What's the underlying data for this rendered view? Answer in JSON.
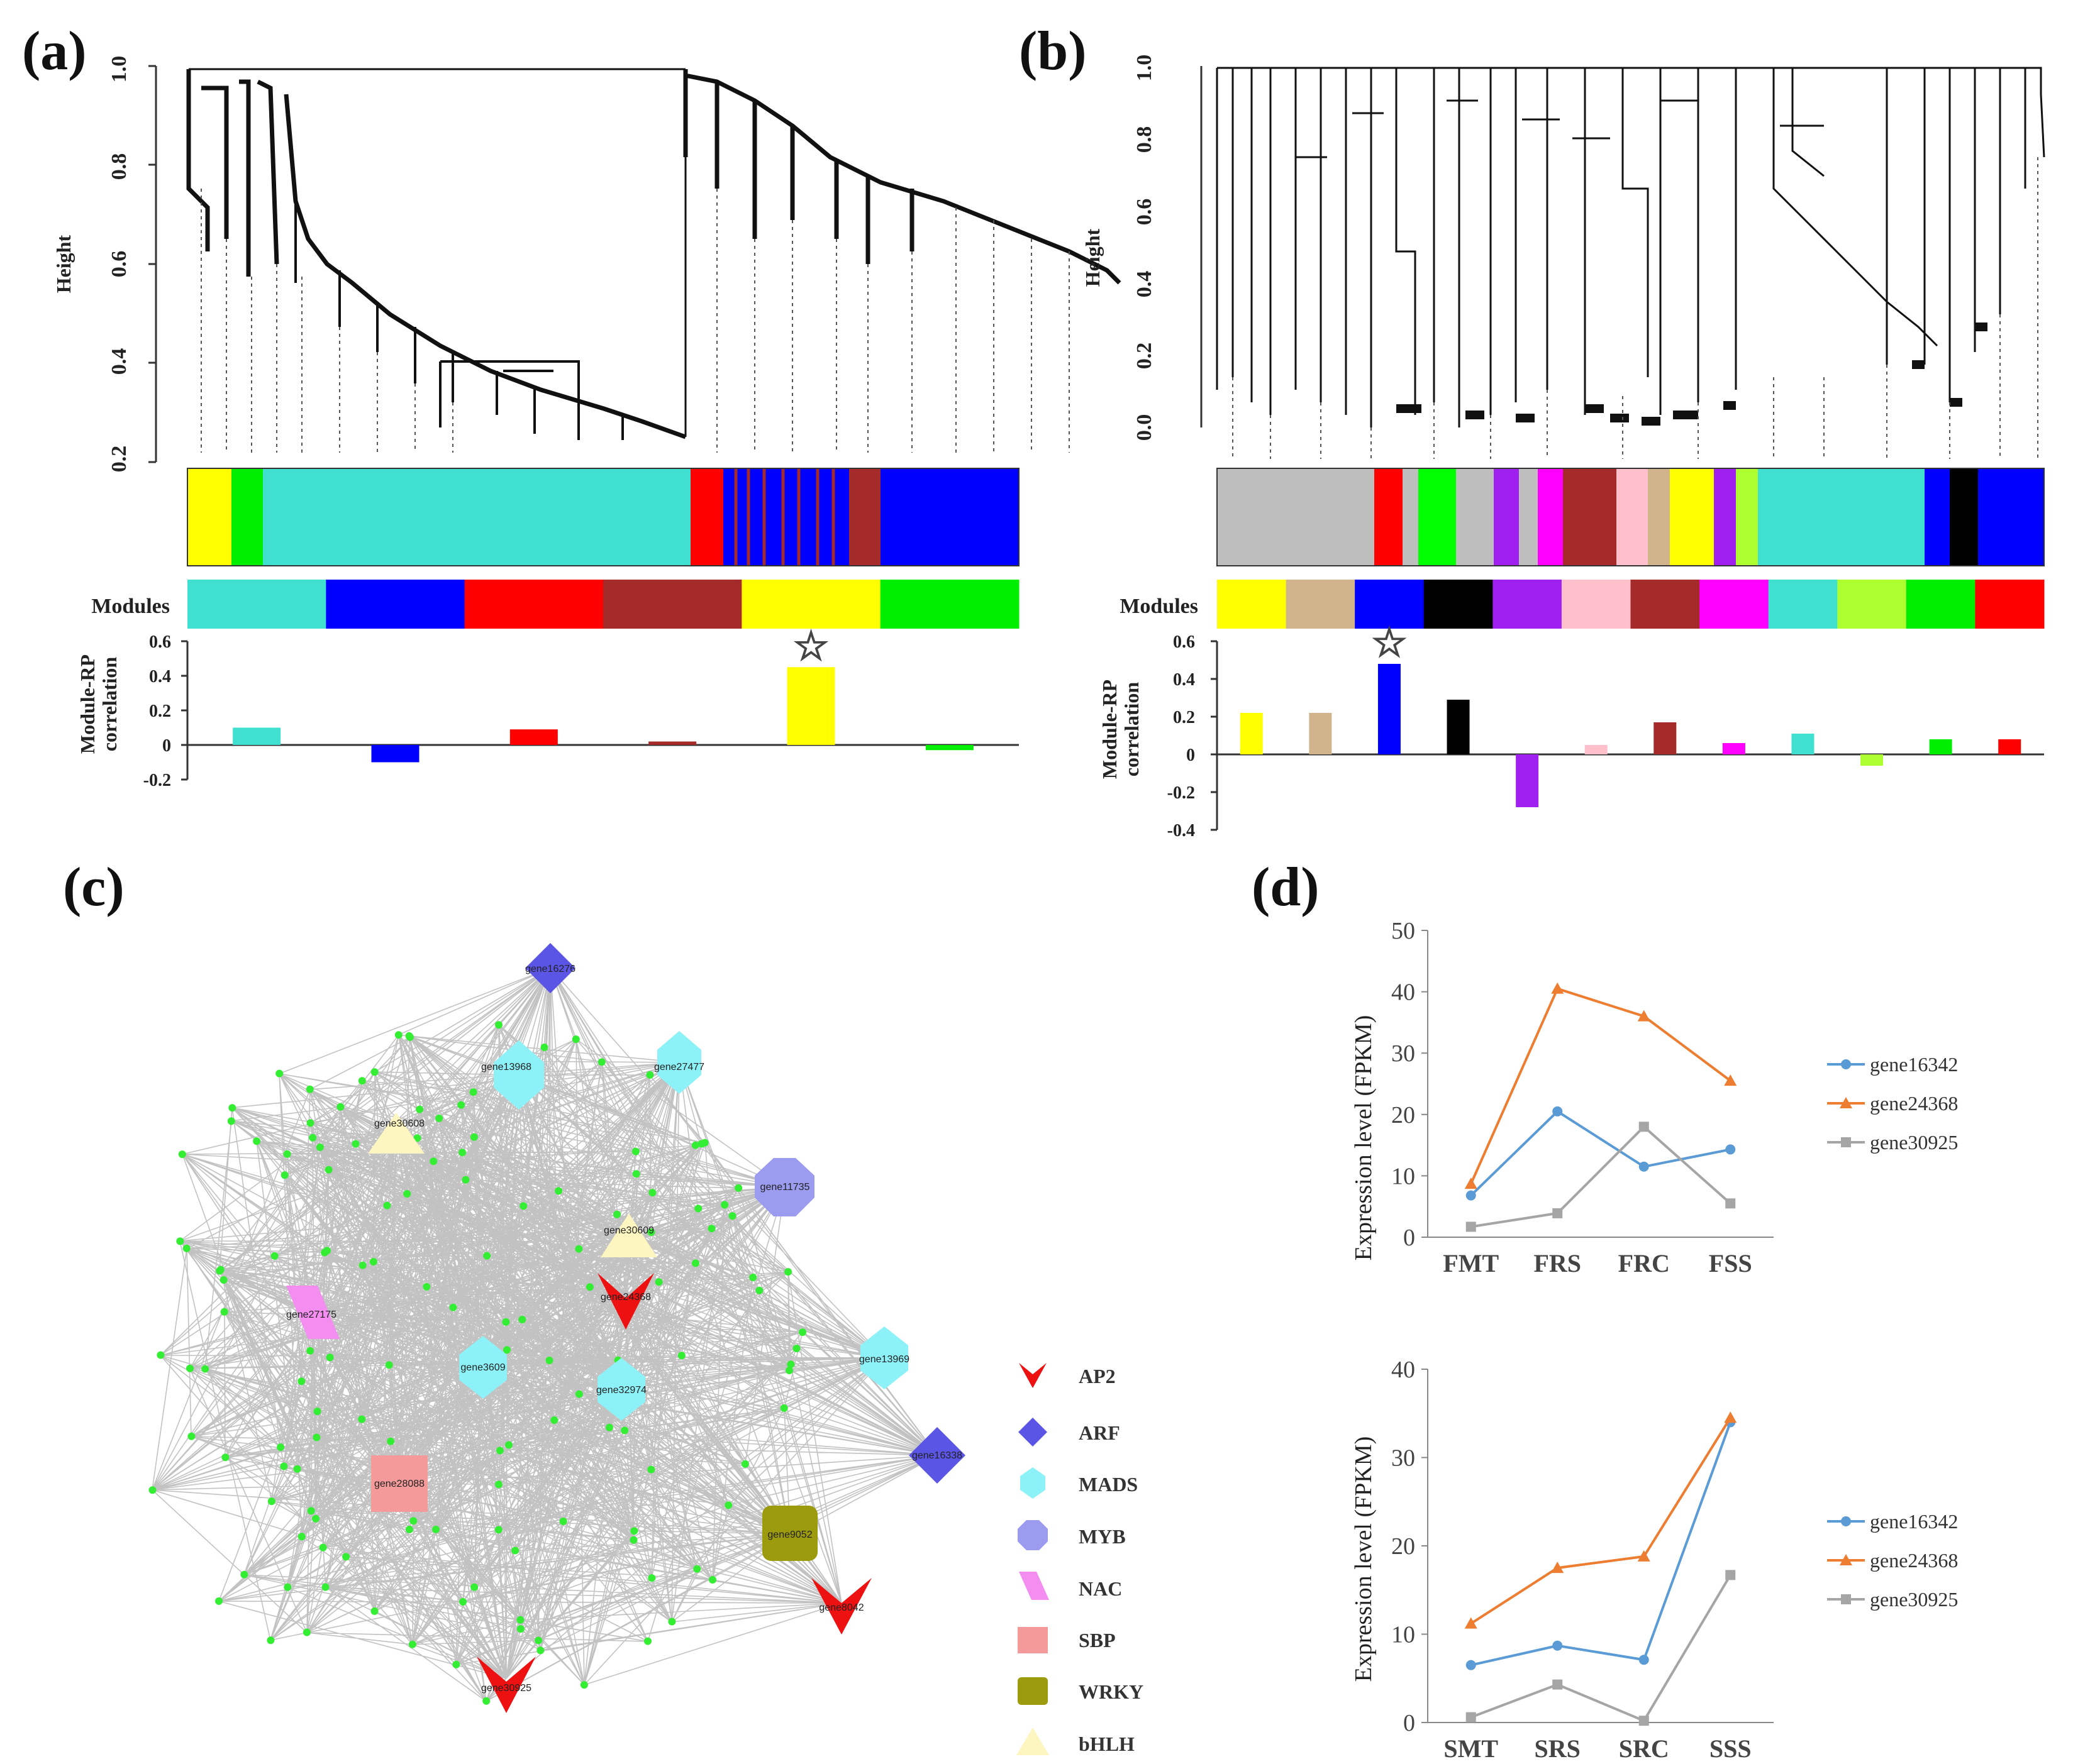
{
  "panel_labels": {
    "a": "(a)",
    "b": "(b)",
    "c": "(c)",
    "d": "(d)"
  },
  "dendro_a": {
    "ylabel": "Height",
    "yticks": [
      "0.2",
      "0.4",
      "0.6",
      "0.8",
      "1.0"
    ],
    "ylim": [
      0.2,
      1.0
    ],
    "color_bar": [
      "#ffff00",
      "#00ee00",
      "#40e0d0",
      "#ff0000",
      "#0000ff",
      "#a52a2a",
      "#0000ff"
    ]
  },
  "dendro_b": {
    "ylabel": "Height",
    "yticks": [
      "0.0",
      "0.2",
      "0.4",
      "0.6",
      "0.8",
      "1.0"
    ],
    "ylim": [
      0.0,
      1.0
    ],
    "color_bar": [
      "#bebebe",
      "#ff0000",
      "#00ff00",
      "#bebebe",
      "#a020f0",
      "#ff00ff",
      "#a52a2a",
      "#ffc0cb",
      "#d2b48c",
      "#ffff00",
      "#a020f0",
      "#adff2f",
      "#40e0d0",
      "#0000ff",
      "#000000",
      "#0000ff"
    ]
  },
  "modules_label": "Modules",
  "rp_ylabel_1": "Module-RP",
  "rp_ylabel_2": "correlation",
  "star": "☆",
  "chart_data": [
    {
      "type": "bar",
      "panel": "(a)",
      "title": "",
      "xlabel": "Modules",
      "ylabel": "Module-RP correlation",
      "categories": [
        "turquoise",
        "blue",
        "red",
        "brown",
        "yellow",
        "green"
      ],
      "colors": [
        "#40e0d0",
        "#0000ff",
        "#ff0000",
        "#a52a2a",
        "#ffff00",
        "#00ee00"
      ],
      "values": [
        0.1,
        -0.1,
        0.09,
        0.02,
        0.45,
        -0.03
      ],
      "yticks": [
        "-0.2",
        "0",
        "0.2",
        "0.4",
        "0.6"
      ],
      "ylim": [
        -0.2,
        0.6
      ],
      "highlight_index": 4
    },
    {
      "type": "bar",
      "panel": "(b)",
      "title": "",
      "xlabel": "Modules",
      "ylabel": "Module-RP correlation",
      "categories": [
        "yellow",
        "tan",
        "blue",
        "black",
        "purple",
        "pink",
        "brown",
        "magenta",
        "turquoise",
        "greenyellow",
        "green",
        "red"
      ],
      "colors": [
        "#ffff00",
        "#d2b48c",
        "#0000ff",
        "#000000",
        "#a020f0",
        "#ffc0cb",
        "#a52a2a",
        "#ff00ff",
        "#40e0d0",
        "#adff2f",
        "#00ee00",
        "#ff0000"
      ],
      "values": [
        0.22,
        0.22,
        0.48,
        0.29,
        -0.28,
        0.05,
        0.17,
        0.06,
        0.11,
        -0.06,
        0.08,
        0.08
      ],
      "yticks": [
        "-0.4",
        "-0.2",
        "0",
        "0.2",
        "0.4",
        "0.6"
      ],
      "ylim": [
        -0.4,
        0.6
      ],
      "highlight_index": 2
    },
    {
      "type": "line",
      "panel": "(d) top",
      "title": "",
      "xlabel": "",
      "ylabel": "Expression level (FPKM)",
      "categories": [
        "FMT",
        "FRS",
        "FRC",
        "FSS"
      ],
      "ylim": [
        0,
        50
      ],
      "yticks": [
        "0",
        "10",
        "20",
        "30",
        "40",
        "50"
      ],
      "series": [
        {
          "name": "gene16342",
          "color": "#5b9bd5",
          "marker": "circle",
          "values": [
            6.8,
            20.5,
            11.5,
            14.3
          ]
        },
        {
          "name": "gene24368",
          "color": "#ed7d31",
          "marker": "triangle",
          "values": [
            8.7,
            40.5,
            36.0,
            25.5
          ]
        },
        {
          "name": "gene30925",
          "color": "#a5a5a5",
          "marker": "square",
          "values": [
            1.7,
            3.9,
            18.0,
            5.5
          ]
        }
      ]
    },
    {
      "type": "line",
      "panel": "(d) bottom",
      "title": "",
      "xlabel": "",
      "ylabel": "Expression level (FPKM)",
      "categories": [
        "SMT",
        "SRS",
        "SRC",
        "SSS"
      ],
      "ylim": [
        0,
        40
      ],
      "yticks": [
        "0",
        "10",
        "20",
        "30",
        "40"
      ],
      "series": [
        {
          "name": "gene16342",
          "color": "#5b9bd5",
          "marker": "circle",
          "values": [
            6.5,
            8.7,
            7.1,
            34.0
          ]
        },
        {
          "name": "gene24368",
          "color": "#ed7d31",
          "marker": "triangle",
          "values": [
            11.2,
            17.5,
            18.8,
            34.5
          ]
        },
        {
          "name": "gene30925",
          "color": "#a5a5a5",
          "marker": "square",
          "values": [
            0.6,
            4.3,
            0.2,
            16.7
          ]
        }
      ]
    }
  ],
  "network": {
    "hubs": [
      {
        "label": "gene16276",
        "family": "ARF"
      },
      {
        "label": "gene13968",
        "family": "MADS"
      },
      {
        "label": "gene27477",
        "family": "MADS"
      },
      {
        "label": "gene30608",
        "family": "bHLH"
      },
      {
        "label": "gene11735",
        "family": "MYB"
      },
      {
        "label": "gene30609",
        "family": "bHLH"
      },
      {
        "label": "gene27175",
        "family": "NAC"
      },
      {
        "label": "gene24368",
        "family": "AP2"
      },
      {
        "label": "gene3609",
        "family": "MADS"
      },
      {
        "label": "gene32974",
        "family": "MADS"
      },
      {
        "label": "gene13969",
        "family": "MADS"
      },
      {
        "label": "gene16338",
        "family": "ARF"
      },
      {
        "label": "gene28088",
        "family": "SBP"
      },
      {
        "label": "gene9052",
        "family": "WRKY"
      },
      {
        "label": "gene8042",
        "family": "AP2"
      },
      {
        "label": "gene30925",
        "family": "AP2"
      }
    ],
    "legend": [
      {
        "label": "AP2",
        "color": "#ee1111",
        "shape": "v"
      },
      {
        "label": "ARF",
        "color": "#5b55e6",
        "shape": "diamond"
      },
      {
        "label": "MADS",
        "color": "#8cf2f8",
        "shape": "hexagon"
      },
      {
        "label": "MYB",
        "color": "#9b9bf0",
        "shape": "octagon"
      },
      {
        "label": "NAC",
        "color": "#f38ef0",
        "shape": "parallelogram"
      },
      {
        "label": "SBP",
        "color": "#f59a9a",
        "shape": "rect"
      },
      {
        "label": "WRKY",
        "color": "#9c9a0d",
        "shape": "roundrect"
      },
      {
        "label": "bHLH",
        "color": "#fdf6c0",
        "shape": "triangle"
      }
    ]
  }
}
